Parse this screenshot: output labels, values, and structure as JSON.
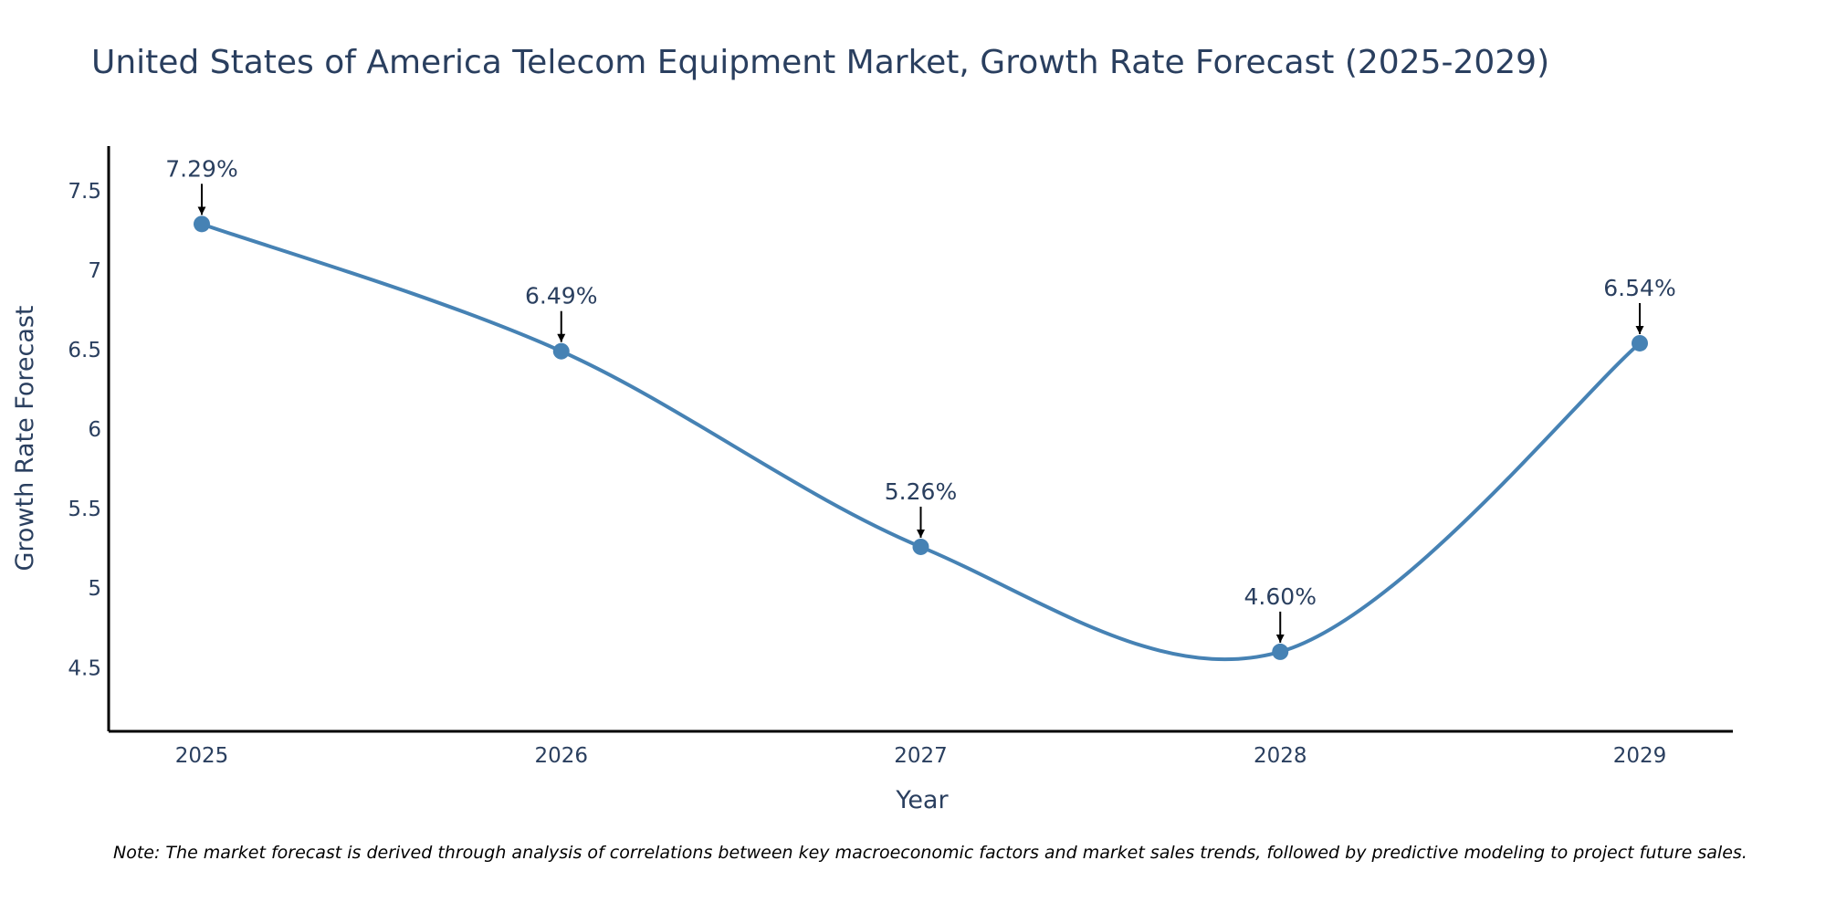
{
  "chart_data": {
    "type": "line",
    "title": "United States of America Telecom Equipment Market, Growth Rate Forecast (2025-2029)",
    "xlabel": "Year",
    "ylabel": "Growth Rate Forecast",
    "categories": [
      "2025",
      "2026",
      "2027",
      "2028",
      "2029"
    ],
    "series": [
      {
        "name": "Growth Rate Forecast",
        "values": [
          7.29,
          6.49,
          5.26,
          4.6,
          6.54
        ],
        "labels": [
          "7.29%",
          "6.49%",
          "5.26%",
          "4.60%",
          "6.54%"
        ]
      }
    ],
    "yticks": [
      4.5,
      5,
      5.5,
      6,
      6.5,
      7,
      7.5
    ],
    "ytick_labels": [
      "4.5",
      "5",
      "5.5",
      "6",
      "6.5",
      "7",
      "7.5"
    ],
    "ylim": [
      4.1,
      7.78
    ],
    "grid": false,
    "line_shape": "spline"
  },
  "note": "Note: The market forecast is derived through analysis of correlations between key macroeconomic factors and market sales trends, followed by predictive modeling to project future sales.",
  "colors": {
    "line": "#4682B4",
    "marker": "#4682B4",
    "text": "#2a3f5f",
    "axis": "#000000",
    "arrow": "#000000"
  }
}
